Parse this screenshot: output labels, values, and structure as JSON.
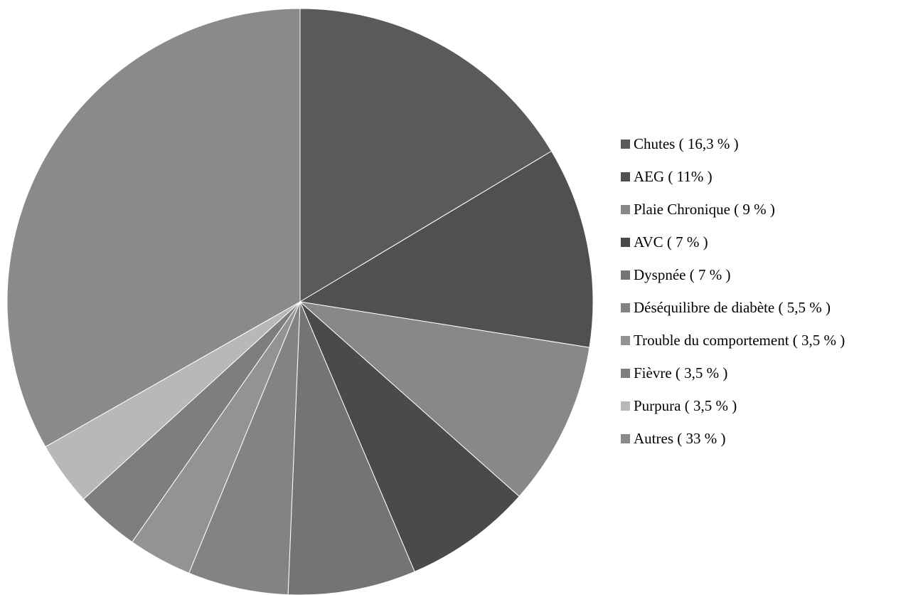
{
  "chart_data": {
    "type": "pie",
    "start_angle_deg": 0,
    "direction": "clockwise",
    "legend_position": "right",
    "slices": [
      {
        "label": "Chutes  ( 16,3 % )",
        "value": 16.3,
        "color": "#5a5a5a"
      },
      {
        "label": "AEG  ( 11% )",
        "value": 11,
        "color": "#505050"
      },
      {
        "label": "Plaie Chronique  ( 9 % )",
        "value": 9,
        "color": "#888888"
      },
      {
        "label": "AVC  ( 7 % )",
        "value": 7,
        "color": "#4a4a4a"
      },
      {
        "label": "Dyspnée  (  7 % )",
        "value": 7,
        "color": "#747474"
      },
      {
        "label": "Déséquilibre de diabète  ( 5,5 % )",
        "value": 5.5,
        "color": "#838383"
      },
      {
        "label": "Trouble du comportement  ( 3,5 % )",
        "value": 3.5,
        "color": "#939393"
      },
      {
        "label": "Fièvre  ( 3,5 % )",
        "value": 3.5,
        "color": "#7e7e7e"
      },
      {
        "label": "Purpura ( 3,5 % )",
        "value": 3.5,
        "color": "#b8b8b8"
      },
      {
        "label": "Autres  ( 33 % )",
        "value": 33,
        "color": "#8a8a8a"
      }
    ]
  }
}
